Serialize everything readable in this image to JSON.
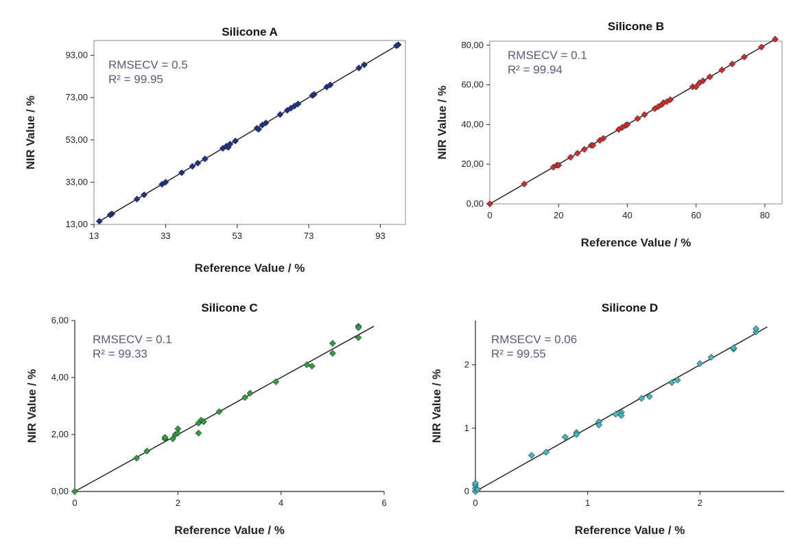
{
  "chart_data": [
    {
      "type": "scatter",
      "title": "Silicone A",
      "xlabel": "Reference Value / %",
      "ylabel": "NIR Value / %",
      "xlim": [
        13,
        100
      ],
      "ylim": [
        13,
        100
      ],
      "xticks": [
        13,
        33,
        53,
        73,
        93
      ],
      "xtick_labels": [
        "13",
        "33",
        "53",
        "73",
        "93"
      ],
      "yticks": [
        13,
        33,
        53,
        73,
        93
      ],
      "ytick_labels": [
        "13,00",
        "33,00",
        "53,00",
        "73,00",
        "93,00"
      ],
      "frame": true,
      "annotation_lines": [
        "RMSECV = 0.5",
        "R² = 99.95"
      ],
      "marker_color": "#1f2f8c",
      "fit_line": [
        [
          14,
          14
        ],
        [
          98,
          98
        ]
      ],
      "series": [
        {
          "name": "Silicone A",
          "points": [
            [
              14.5,
              14.5
            ],
            [
              17.5,
              17.5
            ],
            [
              18,
              18
            ],
            [
              25,
              25
            ],
            [
              27,
              27
            ],
            [
              32,
              32
            ],
            [
              33,
              33
            ],
            [
              37.5,
              37.5
            ],
            [
              40.5,
              40.5
            ],
            [
              42,
              42
            ],
            [
              44,
              44
            ],
            [
              49,
              49
            ],
            [
              50,
              50
            ],
            [
              51,
              51
            ],
            [
              50.5,
              49.5
            ],
            [
              52.5,
              52.5
            ],
            [
              58.5,
              58.5
            ],
            [
              59,
              58
            ],
            [
              60,
              60
            ],
            [
              61,
              61
            ],
            [
              65,
              65
            ],
            [
              67,
              67
            ],
            [
              68,
              68
            ],
            [
              69,
              69
            ],
            [
              70,
              70
            ],
            [
              74,
              74
            ],
            [
              74.5,
              74.5
            ],
            [
              78,
              78
            ],
            [
              79,
              79
            ],
            [
              87,
              87
            ],
            [
              88.5,
              88.5
            ],
            [
              97.5,
              97.5
            ],
            [
              98,
              98
            ]
          ]
        }
      ]
    },
    {
      "type": "scatter",
      "title": "Silicone B",
      "xlabel": "Reference Value / %",
      "ylabel": "NIR Value / %",
      "xlim": [
        0,
        85
      ],
      "ylim": [
        0,
        82
      ],
      "xticks": [
        0,
        20,
        40,
        60,
        80
      ],
      "xtick_labels": [
        "0",
        "20",
        "40",
        "60",
        "80"
      ],
      "yticks": [
        0,
        20,
        40,
        60,
        80
      ],
      "ytick_labels": [
        "0,00",
        "20,00",
        "40,00",
        "60,00",
        "80,00"
      ],
      "frame": true,
      "annotation_lines": [
        "RMSECV = 0.1",
        "R² = 99.94"
      ],
      "marker_color": "#d42a2a",
      "fit_line": [
        [
          0,
          0
        ],
        [
          83,
          83
        ]
      ],
      "series": [
        {
          "name": "Silicone B",
          "points": [
            [
              0,
              0
            ],
            [
              10,
              10
            ],
            [
              18.5,
              18.5
            ],
            [
              19.5,
              19.5
            ],
            [
              20,
              19.5
            ],
            [
              23.5,
              23.5
            ],
            [
              25.5,
              25.5
            ],
            [
              27.5,
              27.5
            ],
            [
              29.5,
              29.5
            ],
            [
              30,
              29.5
            ],
            [
              32,
              32
            ],
            [
              33,
              33
            ],
            [
              37.5,
              37.5
            ],
            [
              38.5,
              38.5
            ],
            [
              39.5,
              39.5
            ],
            [
              40,
              40
            ],
            [
              43,
              43
            ],
            [
              45,
              45
            ],
            [
              48,
              48
            ],
            [
              49,
              49
            ],
            [
              50,
              50
            ],
            [
              50.5,
              51
            ],
            [
              51.5,
              51.5
            ],
            [
              52.5,
              52.5
            ],
            [
              59,
              59
            ],
            [
              60,
              59
            ],
            [
              61,
              61
            ],
            [
              62,
              62
            ],
            [
              64,
              64
            ],
            [
              67.5,
              67.5
            ],
            [
              70.5,
              70.5
            ],
            [
              74,
              74
            ],
            [
              79,
              79
            ],
            [
              83,
              83
            ]
          ]
        }
      ]
    },
    {
      "type": "scatter",
      "title": "Silicone C",
      "xlabel": "Reference Value / %",
      "ylabel": "NIR Value / %",
      "xlim": [
        0,
        6
      ],
      "ylim": [
        0,
        6
      ],
      "xticks": [
        0,
        2,
        4,
        6
      ],
      "xtick_labels": [
        "0",
        "2",
        "4",
        "6"
      ],
      "yticks": [
        0,
        2,
        4,
        6
      ],
      "ytick_labels": [
        "0,00",
        "2,00",
        "4,00",
        "6,00"
      ],
      "frame": false,
      "annotation_lines": [
        "RMSECV = 0.1",
        "R² = 99.33"
      ],
      "marker_color": "#2e9e3e",
      "fit_line": [
        [
          0,
          0
        ],
        [
          5.8,
          5.8
        ]
      ],
      "series": [
        {
          "name": "Silicone C",
          "points": [
            [
              0,
              0
            ],
            [
              1.2,
              1.17
            ],
            [
              1.4,
              1.42
            ],
            [
              1.75,
              1.85
            ],
            [
              1.75,
              1.9
            ],
            [
              1.9,
              1.85
            ],
            [
              1.95,
              2.0
            ],
            [
              2.0,
              2.2
            ],
            [
              2.0,
              2.05
            ],
            [
              2.4,
              2.05
            ],
            [
              2.4,
              2.4
            ],
            [
              2.45,
              2.5
            ],
            [
              2.5,
              2.45
            ],
            [
              2.8,
              2.8
            ],
            [
              3.3,
              3.3
            ],
            [
              3.4,
              3.45
            ],
            [
              3.9,
              3.85
            ],
            [
              4.5,
              4.45
            ],
            [
              4.6,
              4.4
            ],
            [
              5.0,
              5.2
            ],
            [
              5.0,
              4.85
            ],
            [
              5.5,
              5.8
            ],
            [
              5.5,
              5.75
            ],
            [
              5.5,
              5.4
            ]
          ]
        }
      ]
    },
    {
      "type": "scatter",
      "title": "Silicone D",
      "xlabel": "Reference Value / %",
      "ylabel": "NIR Value / %",
      "xlim": [
        0,
        2.75
      ],
      "ylim": [
        0,
        2.7
      ],
      "xticks": [
        0,
        1,
        2
      ],
      "xtick_labels": [
        "0",
        "1",
        "2"
      ],
      "yticks": [
        0,
        1,
        2
      ],
      "ytick_labels": [
        "0",
        "1",
        "2"
      ],
      "frame": false,
      "annotation_lines": [
        "RMSECV = 0.06",
        "R² = 99.55"
      ],
      "marker_color": "#3bbcc4",
      "fit_line": [
        [
          0,
          0
        ],
        [
          2.6,
          2.6
        ]
      ],
      "series": [
        {
          "name": "Silicone D",
          "points": [
            [
              0,
              0
            ],
            [
              0,
              0.05
            ],
            [
              0,
              0.1
            ],
            [
              0,
              0.13
            ],
            [
              0.02,
              0.03
            ],
            [
              0.5,
              0.57
            ],
            [
              0.63,
              0.62
            ],
            [
              0.8,
              0.86
            ],
            [
              0.9,
              0.93
            ],
            [
              0.9,
              0.9
            ],
            [
              1.1,
              1.1
            ],
            [
              1.1,
              1.05
            ],
            [
              1.25,
              1.22
            ],
            [
              1.3,
              1.25
            ],
            [
              1.3,
              1.2
            ],
            [
              1.48,
              1.47
            ],
            [
              1.55,
              1.5
            ],
            [
              1.75,
              1.72
            ],
            [
              1.8,
              1.76
            ],
            [
              2.0,
              2.02
            ],
            [
              2.1,
              2.12
            ],
            [
              2.3,
              2.25
            ],
            [
              2.3,
              2.27
            ],
            [
              2.5,
              2.52
            ],
            [
              2.5,
              2.57
            ]
          ]
        }
      ]
    }
  ]
}
